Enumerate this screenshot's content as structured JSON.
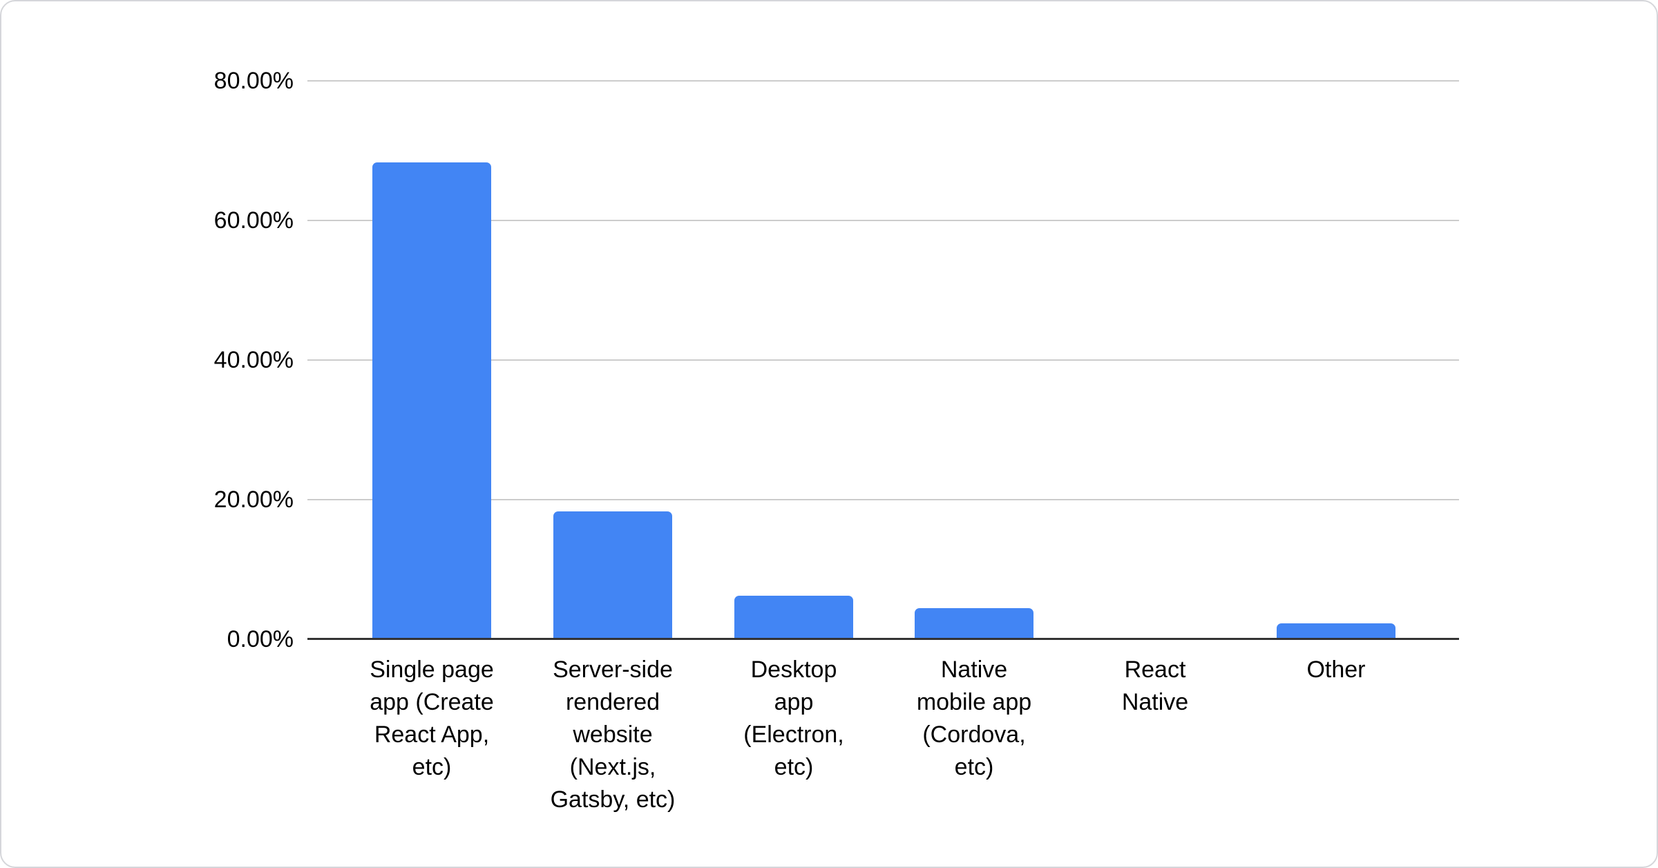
{
  "chart_data": {
    "type": "bar",
    "title": "",
    "xlabel": "",
    "ylabel": "",
    "categories": [
      "Single page app (Create React App, etc)",
      "Server-side rendered website (Next.js, Gatsby, etc)",
      "Desktop app (Electron, etc)",
      "Native mobile app (Cordova, etc)",
      "React Native",
      "Other"
    ],
    "category_label_lines": [
      [
        "Single page",
        "app (Create",
        "React App,",
        "etc)"
      ],
      [
        "Server-side",
        "rendered",
        "website",
        "(Next.js,",
        "Gatsby, etc)"
      ],
      [
        "Desktop",
        "app",
        "(Electron,",
        "etc)"
      ],
      [
        "Native",
        "mobile app",
        "(Cordova,",
        "etc)"
      ],
      [
        "React",
        "Native"
      ],
      [
        "Other"
      ]
    ],
    "values": [
      68.3,
      18.3,
      6.2,
      4.5,
      0.0,
      2.3
    ],
    "unit": "percent",
    "ylim": [
      0,
      80
    ],
    "ytick_step": 20,
    "ytick_labels": [
      "80.00%",
      "60.00%",
      "40.00%",
      "20.00%",
      "0.00%"
    ],
    "grid": true,
    "legend": "none",
    "colors": {
      "bar": "#4285f4",
      "gridline": "#cccccc",
      "axis_line": "#333333",
      "text": "#000000",
      "card_border": "#d5d6da",
      "card_background": "#ffffff"
    }
  }
}
